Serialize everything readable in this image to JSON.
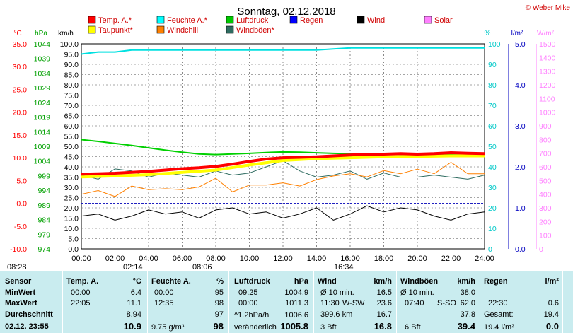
{
  "header": {
    "title": "Sonntag, 02.12.2018",
    "copyright": "© Weber Mike"
  },
  "legend": [
    {
      "label": "Temp. A.*",
      "color": "#ff0000"
    },
    {
      "label": "Feuchte A.*",
      "color": "#00ffff"
    },
    {
      "label": "Luftdruck",
      "color": "#00c800"
    },
    {
      "label": "Regen",
      "color": "#0000ff"
    },
    {
      "label": "Wind",
      "color": "#000000"
    },
    {
      "label": "Solar",
      "color": "#ff80ff"
    },
    {
      "label": "Taupunkt*",
      "color": "#ffff00"
    },
    {
      "label": "Windchill",
      "color": "#ff8000"
    },
    {
      "label": "Windböen*",
      "color": "#2e6b60"
    }
  ],
  "axes": {
    "temp": {
      "unit": "°C",
      "ticks": [
        "35.0",
        "30.0",
        "25.0",
        "20.0",
        "15.0",
        "10.0",
        "5.0",
        "0.0",
        "-5.0",
        "-10.0"
      ],
      "range": [
        -10,
        35
      ],
      "color": "#ff0000"
    },
    "pressure": {
      "unit": "hPa",
      "ticks": [
        "1044",
        "1039",
        "1034",
        "1029",
        "1024",
        "1019",
        "1014",
        "1009",
        "1004",
        "999",
        "994",
        "989",
        "984",
        "979",
        "974"
      ],
      "range": [
        974,
        1044
      ],
      "color": "#00a000"
    },
    "wind": {
      "unit": "km/h",
      "ticks": [
        "100.0",
        "95.0",
        "90.0",
        "85.0",
        "80.0",
        "75.0",
        "70.0",
        "65.0",
        "60.0",
        "55.0",
        "50.0",
        "45.0",
        "40.0",
        "35.0",
        "30.0",
        "25.0",
        "20.0",
        "15.0",
        "10.0",
        "5.0",
        "0.0"
      ],
      "range": [
        0,
        100
      ]
    },
    "humidity": {
      "unit": "%",
      "ticks": [
        "100",
        "90",
        "80",
        "70",
        "60",
        "50",
        "40",
        "30",
        "20",
        "10",
        "0"
      ],
      "range": [
        0,
        100
      ],
      "color": "#00c8c8"
    },
    "rain": {
      "unit": "l/m²",
      "ticks": [
        "5.0",
        "4.0",
        "3.0",
        "2.0",
        "1.0",
        "0.0"
      ],
      "range": [
        0,
        5
      ],
      "color": "#0000c0"
    },
    "solar": {
      "unit": "W/m²",
      "ticks": [
        "1500",
        "1400",
        "1300",
        "1200",
        "1100",
        "1000",
        "900",
        "800",
        "700",
        "600",
        "500",
        "400",
        "300",
        "200",
        "100",
        "0"
      ],
      "range": [
        0,
        1500
      ],
      "color": "#ff80ff"
    },
    "time": {
      "ticks": [
        "00:00",
        "02:00",
        "04:00",
        "06:00",
        "08:00",
        "10:00",
        "12:00",
        "14:00",
        "16:00",
        "18:00",
        "20:00",
        "22:00",
        "24:00"
      ]
    }
  },
  "sun_events": [
    "08:28",
    "02:14",
    "08:06",
    "16:34"
  ],
  "chart_data": {
    "type": "line",
    "x_range_hours": [
      0,
      24
    ],
    "temperature_c": {
      "x": [
        0,
        1,
        2,
        3,
        4,
        5,
        6,
        7,
        8,
        9,
        10,
        11,
        12,
        13,
        14,
        15,
        16,
        17,
        18,
        19,
        20,
        21,
        22,
        23,
        24
      ],
      "y": [
        6.4,
        6.5,
        6.6,
        6.8,
        7.0,
        7.3,
        7.6,
        7.8,
        8.1,
        8.6,
        9.2,
        9.7,
        10.0,
        10.1,
        10.2,
        10.4,
        10.6,
        10.8,
        10.8,
        10.9,
        10.8,
        10.9,
        11.1,
        11.0,
        10.9
      ]
    },
    "dewpoint_c": {
      "x": [
        0,
        2,
        4,
        6,
        8,
        10,
        12,
        14,
        16,
        18,
        20,
        22,
        24
      ],
      "y": [
        5.8,
        6.0,
        6.3,
        6.8,
        7.3,
        8.4,
        9.4,
        9.8,
        10.0,
        10.2,
        10.3,
        10.4,
        10.4
      ]
    },
    "humidity_pct": {
      "x": [
        0,
        1,
        2,
        3,
        4,
        6,
        8,
        10,
        12,
        14,
        16,
        18,
        20,
        22,
        24
      ],
      "y": [
        95,
        96,
        96,
        97,
        97,
        97,
        97,
        97,
        97,
        97,
        98,
        98,
        98,
        98,
        98
      ]
    },
    "pressure_hpa": {
      "x": [
        0,
        1,
        2,
        3,
        4,
        5,
        6,
        7,
        8,
        9,
        10,
        11,
        12,
        13,
        14,
        15,
        16,
        17,
        18,
        19,
        20,
        21,
        22,
        23,
        24
      ],
      "y": [
        1011.3,
        1010.7,
        1010.0,
        1009.3,
        1008.5,
        1007.7,
        1007.0,
        1006.4,
        1006.2,
        1006.4,
        1006.6,
        1006.9,
        1007.1,
        1007.0,
        1006.8,
        1006.6,
        1006.5,
        1006.4,
        1006.4,
        1006.3,
        1006.2,
        1006.2,
        1006.1,
        1006.0,
        1006.0
      ]
    },
    "wind_kmh": {
      "x": [
        0,
        1,
        2,
        3,
        4,
        5,
        6,
        7,
        8,
        9,
        10,
        11,
        12,
        13,
        14,
        15,
        16,
        17,
        18,
        19,
        20,
        21,
        22,
        23,
        24
      ],
      "y": [
        16,
        17,
        14,
        16,
        19,
        17,
        18,
        15,
        19,
        20,
        17,
        18,
        15,
        17,
        20,
        14,
        17,
        21,
        18,
        20,
        19,
        16,
        14,
        17,
        18
      ]
    },
    "windchill_c": {
      "x": [
        0,
        1,
        2,
        3,
        4,
        5,
        6,
        7,
        8,
        9,
        10,
        11,
        12,
        13,
        14,
        15,
        16,
        17,
        18,
        19,
        20,
        21,
        22,
        23,
        24
      ],
      "y": [
        2.0,
        2.8,
        1.5,
        3.8,
        3.0,
        3.2,
        3.0,
        3.6,
        5.5,
        2.5,
        4.0,
        4.0,
        4.5,
        3.8,
        5.2,
        6.0,
        6.5,
        5.8,
        7.2,
        6.5,
        7.5,
        6.5,
        9.0,
        6.5,
        6.5
      ]
    },
    "gust_kmh": {
      "x": [
        0,
        1,
        2,
        3,
        4,
        5,
        6,
        7,
        8,
        9,
        10,
        11,
        12,
        13,
        14,
        15,
        16,
        17,
        18,
        19,
        20,
        21,
        22,
        23,
        24
      ],
      "y": [
        36,
        34,
        39,
        38,
        35,
        37,
        36,
        35,
        38,
        36,
        37,
        40,
        43,
        38,
        35,
        36,
        38,
        34,
        37,
        35,
        35,
        36,
        35,
        34,
        36
      ]
    },
    "rain_l_m2": {
      "total": 19.4
    }
  },
  "stats": {
    "labels": {
      "sensor": "Sensor",
      "min": "MinWert",
      "max": "MaxWert",
      "avg": "Durchschnitt",
      "date": "02.12. 23:55"
    },
    "temp": {
      "title": "Temp. A.",
      "unit": "°C",
      "min_time": "00:00",
      "min": "6.4",
      "max_time": "22:05",
      "max": "11.1",
      "avg": "8.94",
      "current": "10.9"
    },
    "humidity": {
      "title": "Feuchte A.",
      "unit": "%",
      "min_time": "00:00",
      "min": "95",
      "max_time": "12:35",
      "max": "98",
      "avg": "97",
      "abs": "9.75 g/m³",
      "current": "98"
    },
    "pressure": {
      "title": "Luftdruck",
      "unit": "hPa",
      "min_time": "09:25",
      "min": "1004.9",
      "max_time": "00:00",
      "max": "1011.3",
      "avg_label": "^1.2hPa/h",
      "avg": "1006.6",
      "trend": "veränderlich",
      "current": "1005.8"
    },
    "wind": {
      "title": "Wind",
      "unit": "km/h",
      "min_label": "Ø 10 min.",
      "min": "16.5",
      "max_time": "11:30",
      "max_dir": "W-SW",
      "max": "23.6",
      "dist": "399.6 km",
      "avg": "16.7",
      "bft": "3 Bft",
      "current": "16.8"
    },
    "gust": {
      "title": "Windböen",
      "unit": "km/h",
      "min_label": "Ø 10 min.",
      "min": "38.0",
      "max_time": "07:40",
      "max_dir": "S-SO",
      "max": "62.0",
      "avg": "37.8",
      "bft": "6 Bft",
      "current": "39.4"
    },
    "rain": {
      "title": "Regen",
      "unit": "l/m²",
      "max_time": "22:30",
      "max": "0.6",
      "total_label": "Gesamt:",
      "total": "19.4",
      "current_label": "19.4 l/m²",
      "current": "0.0"
    }
  }
}
